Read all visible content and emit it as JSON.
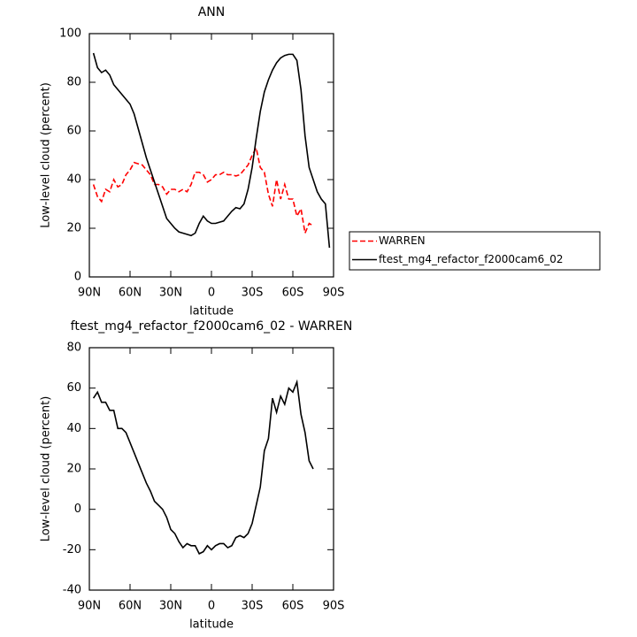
{
  "chart_data": [
    {
      "type": "line",
      "title": "ANN",
      "x_label": "latitude",
      "y_label": "Low-level cloud (percent)",
      "x": [
        87,
        84,
        81,
        78,
        75,
        72,
        69,
        66,
        63,
        60,
        57,
        54,
        51,
        48,
        45,
        42,
        39,
        36,
        33,
        30,
        27,
        24,
        21,
        18,
        15,
        12,
        9,
        6,
        3,
        0,
        -3,
        -6,
        -9,
        -12,
        -15,
        -18,
        -21,
        -24,
        -27,
        -30,
        -33,
        -36,
        -39,
        -42,
        -45,
        -48,
        -51,
        -54,
        -57,
        -60,
        -63,
        -66,
        -69,
        -72,
        -75,
        -78,
        -81,
        -84,
        -87
      ],
      "series": [
        {
          "name": "WARREN",
          "color": "#ff0000",
          "dash": true,
          "values": [
            38,
            33,
            31,
            36,
            35,
            40,
            37,
            38,
            42,
            44,
            47,
            46.5,
            46,
            44,
            42,
            38,
            38,
            37,
            34,
            36,
            36,
            35,
            36,
            35,
            38,
            43,
            43,
            42,
            39,
            40,
            42,
            42,
            43,
            42,
            42,
            41.5,
            42,
            44,
            46,
            50,
            53,
            45,
            43,
            34,
            29,
            40,
            32,
            38,
            32,
            32,
            25,
            28,
            18,
            22,
            21,
            null,
            null,
            null,
            null
          ]
        },
        {
          "name": "ftest_mg4_refactor_f2000cam6_02",
          "color": "#000000",
          "dash": false,
          "values": [
            92,
            86,
            84,
            85,
            83,
            79,
            77,
            75,
            73,
            71,
            67,
            61,
            55,
            49,
            44,
            39,
            34,
            29,
            24,
            22,
            20,
            18.5,
            18,
            17.5,
            17,
            18,
            22,
            25,
            23,
            22,
            22,
            22.5,
            23,
            25,
            27,
            28.5,
            28,
            30,
            36,
            45,
            57,
            68,
            76,
            81,
            85,
            88,
            90,
            91,
            91.5,
            91.5,
            89,
            77,
            58,
            45,
            40,
            35,
            32,
            30,
            12
          ]
        }
      ],
      "xlim": [
        90,
        -90
      ],
      "xticks": [
        {
          "value": 90,
          "label": "90N"
        },
        {
          "value": 60,
          "label": "60N"
        },
        {
          "value": 30,
          "label": "30N"
        },
        0,
        {
          "value": -30,
          "label": "30S"
        },
        {
          "value": -60,
          "label": "60S"
        },
        {
          "value": -90,
          "label": "90S"
        }
      ],
      "ylim": [
        0,
        100
      ],
      "yticks": [
        0,
        20,
        40,
        60,
        80,
        100
      ],
      "legend": "right"
    },
    {
      "type": "line",
      "title": "ftest_mg4_refactor_f2000cam6_02 - WARREN",
      "x_label": "latitude",
      "y_label": "Low-level cloud (percent)",
      "x": [
        87,
        84,
        81,
        78,
        75,
        72,
        69,
        66,
        63,
        60,
        57,
        54,
        51,
        48,
        45,
        42,
        39,
        36,
        33,
        30,
        27,
        24,
        21,
        18,
        15,
        12,
        9,
        6,
        3,
        0,
        -3,
        -6,
        -9,
        -12,
        -15,
        -18,
        -21,
        -24,
        -27,
        -30,
        -33,
        -36,
        -39,
        -42,
        -45,
        -48,
        -51,
        -54,
        -57,
        -60,
        -63,
        -66,
        -69,
        -72,
        -75,
        -78,
        -81,
        -84,
        -87
      ],
      "series": [
        {
          "name": "ftest_mg4_refactor_f2000cam6_02 - WARREN",
          "color": "#000000",
          "dash": false,
          "values": [
            55,
            58,
            53,
            53,
            49,
            49,
            40,
            40,
            38,
            33,
            28,
            23,
            18,
            13,
            9,
            4,
            2,
            0,
            -4,
            -10,
            -12,
            -16,
            -19,
            -17,
            -18,
            -18,
            -22,
            -21,
            -18,
            -20,
            -18,
            -17,
            -17,
            -19,
            -18,
            -14,
            -13,
            -14,
            -12,
            -7,
            2,
            11,
            29,
            35,
            55,
            48,
            56,
            52,
            60,
            58,
            63,
            47,
            38,
            24,
            20,
            null,
            null,
            null,
            null
          ]
        }
      ],
      "xlim": [
        90,
        -90
      ],
      "xticks": [
        {
          "value": 90,
          "label": "90N"
        },
        {
          "value": 60,
          "label": "60N"
        },
        {
          "value": 30,
          "label": "30N"
        },
        0,
        {
          "value": -30,
          "label": "30S"
        },
        {
          "value": -60,
          "label": "60S"
        },
        {
          "value": -90,
          "label": "90S"
        }
      ],
      "ylim": [
        -40,
        80
      ],
      "yticks": [
        -40,
        -20,
        0,
        20,
        40,
        60,
        80
      ]
    }
  ]
}
